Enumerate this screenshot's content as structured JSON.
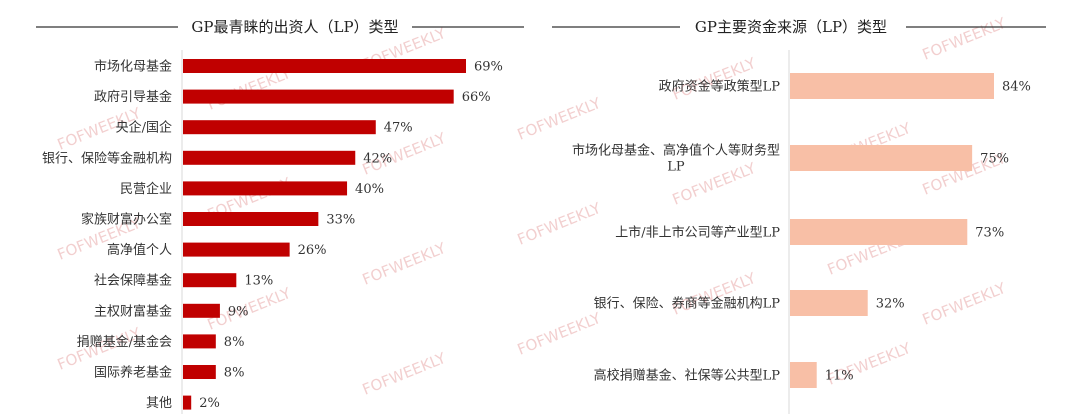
{
  "watermark": "FOFWEEKLY",
  "chart_data": [
    {
      "type": "bar",
      "orientation": "horizontal",
      "title": "GP最青睐的出资人（LP）类型",
      "color": "#c00000",
      "categories": [
        "市场化母基金",
        "政府引导基金",
        "央企/国企",
        "银行、保险等金融机构",
        "民营企业",
        "家族财富办公室",
        "高净值个人",
        "社会保障基金",
        "主权财富基金",
        "捐赠基金/基金会",
        "国际养老基金",
        "其他"
      ],
      "values": [
        69,
        66,
        47,
        42,
        40,
        33,
        26,
        13,
        9,
        8,
        8,
        2
      ],
      "value_labels": [
        "69%",
        "66%",
        "47%",
        "42%",
        "40%",
        "33%",
        "26%",
        "13%",
        "9%",
        "8%",
        "8%",
        "2%"
      ],
      "xlim": [
        0,
        100
      ],
      "grid": false
    },
    {
      "type": "bar",
      "orientation": "horizontal",
      "title": "GP主要资金来源（LP）类型",
      "color": "#f8bfa6",
      "categories": [
        [
          "政府资金等政策型LP"
        ],
        [
          "市场化母基金、高净值个人等财务型",
          "LP"
        ],
        [
          "上市/非上市公司等产业型LP"
        ],
        [
          "银行、保险、券商等金融机构LP"
        ],
        [
          "高校捐赠基金、社保等公共型LP"
        ]
      ],
      "values": [
        84,
        75,
        73,
        32,
        11
      ],
      "value_labels": [
        "84%",
        "75%",
        "73%",
        "32%",
        "11%"
      ],
      "xlim": [
        0,
        100
      ],
      "grid": false
    }
  ]
}
